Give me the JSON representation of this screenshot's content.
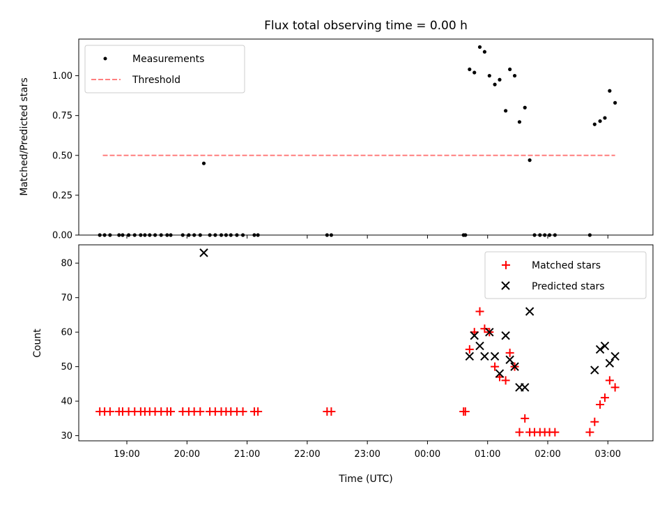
{
  "chart_data": [
    {
      "type": "scatter",
      "title": "Flux total observing time = 0.00 h",
      "xlabel": "",
      "ylabel": "Matched/Predicted stars",
      "xlim_hours": [
        18.2,
        27.75
      ],
      "ylim": [
        0,
        1.23
      ],
      "yticks": [
        0,
        0.25,
        0.5,
        0.75,
        1.0
      ],
      "ytick_labels": [
        "0.00",
        "0.25",
        "0.50",
        "0.75",
        "1.00"
      ],
      "legend_position": "top-left",
      "legend": [
        "Measurements",
        "Threshold"
      ],
      "threshold": {
        "name": "Threshold",
        "value": 0.5,
        "x_range_hours": [
          18.6,
          27.12
        ],
        "color": "#ff7f7f"
      },
      "series": [
        {
          "name": "Measurements",
          "marker": "dot",
          "color": "#000000",
          "x_hours": [
            18.55,
            18.63,
            18.72,
            18.87,
            18.93,
            19.03,
            19.13,
            19.23,
            19.3,
            19.38,
            19.47,
            19.57,
            19.67,
            19.73,
            19.93,
            20.03,
            20.12,
            20.22,
            20.28,
            20.38,
            20.47,
            20.57,
            20.65,
            20.73,
            20.83,
            20.93,
            21.12,
            21.18,
            22.33,
            22.4,
            24.6,
            24.63,
            24.7,
            24.78,
            24.87,
            24.95,
            25.03,
            25.12,
            25.2,
            25.3,
            25.37,
            25.45,
            25.53,
            25.62,
            25.7,
            25.78,
            25.87,
            25.95,
            26.03,
            26.12,
            26.7,
            26.78,
            26.87,
            26.95,
            27.03,
            27.12
          ],
          "values": [
            0,
            0,
            0,
            0,
            0,
            0,
            0,
            0,
            0,
            0,
            0,
            0,
            0,
            0,
            0,
            0,
            0,
            0,
            0.45,
            0,
            0,
            0,
            0,
            0,
            0,
            0,
            0,
            0,
            0,
            0,
            0,
            0,
            1.04,
            1.02,
            1.18,
            1.15,
            1.0,
            0.945,
            0.975,
            0.78,
            1.04,
            1.0,
            0.71,
            0.8,
            0.47,
            0,
            0,
            0,
            0,
            0,
            0,
            0.695,
            0.715,
            0.735,
            0.905,
            0.83
          ]
        }
      ]
    },
    {
      "type": "scatter",
      "title": "",
      "xlabel": "Time (UTC)",
      "ylabel": "Count",
      "xlim_hours": [
        18.2,
        27.75
      ],
      "ylim": [
        28.5,
        85.3
      ],
      "yticks": [
        30,
        40,
        50,
        60,
        70,
        80
      ],
      "ytick_labels": [
        "30",
        "40",
        "50",
        "60",
        "70",
        "80"
      ],
      "xticks_hours": [
        19,
        20,
        21,
        22,
        23,
        24,
        25,
        26,
        27
      ],
      "xtick_labels": [
        "19:00",
        "20:00",
        "21:00",
        "22:00",
        "23:00",
        "00:00",
        "01:00",
        "02:00",
        "03:00"
      ],
      "legend_position": "top-right",
      "legend": [
        "Matched stars",
        "Predicted stars"
      ],
      "series": [
        {
          "name": "Matched stars",
          "marker": "plus",
          "color": "#ff0000",
          "x_hours": [
            18.55,
            18.63,
            18.72,
            18.87,
            18.93,
            19.03,
            19.13,
            19.23,
            19.3,
            19.38,
            19.47,
            19.57,
            19.67,
            19.73,
            19.93,
            20.03,
            20.12,
            20.22,
            20.38,
            20.47,
            20.57,
            20.65,
            20.73,
            20.83,
            20.93,
            21.12,
            21.18,
            22.33,
            22.4,
            24.6,
            24.63,
            24.7,
            24.78,
            24.87,
            24.95,
            25.03,
            25.12,
            25.2,
            25.3,
            25.37,
            25.45,
            25.53,
            25.62,
            25.7,
            25.78,
            25.87,
            25.95,
            26.03,
            26.12,
            26.7,
            26.78,
            26.87,
            26.95,
            27.03,
            27.12
          ],
          "values": [
            37,
            37,
            37,
            37,
            37,
            37,
            37,
            37,
            37,
            37,
            37,
            37,
            37,
            37,
            37,
            37,
            37,
            37,
            37,
            37,
            37,
            37,
            37,
            37,
            37,
            37,
            37,
            37,
            37,
            37,
            37,
            55,
            60,
            66,
            61,
            60,
            50,
            47,
            46,
            54,
            50,
            31,
            35,
            31,
            31,
            31,
            31,
            31,
            31,
            31,
            34,
            39,
            41,
            46,
            44
          ]
        },
        {
          "name": "Predicted stars",
          "marker": "x",
          "color": "#000000",
          "x_hours": [
            20.28,
            24.7,
            24.78,
            24.87,
            24.95,
            25.03,
            25.12,
            25.2,
            25.3,
            25.37,
            25.45,
            25.53,
            25.62,
            25.7,
            26.78,
            26.87,
            26.95,
            27.03,
            27.12
          ],
          "values": [
            83,
            53,
            59,
            56,
            53,
            60,
            53,
            48,
            59,
            52,
            50,
            44,
            44,
            66,
            49,
            55,
            56,
            51,
            53
          ]
        }
      ]
    }
  ]
}
